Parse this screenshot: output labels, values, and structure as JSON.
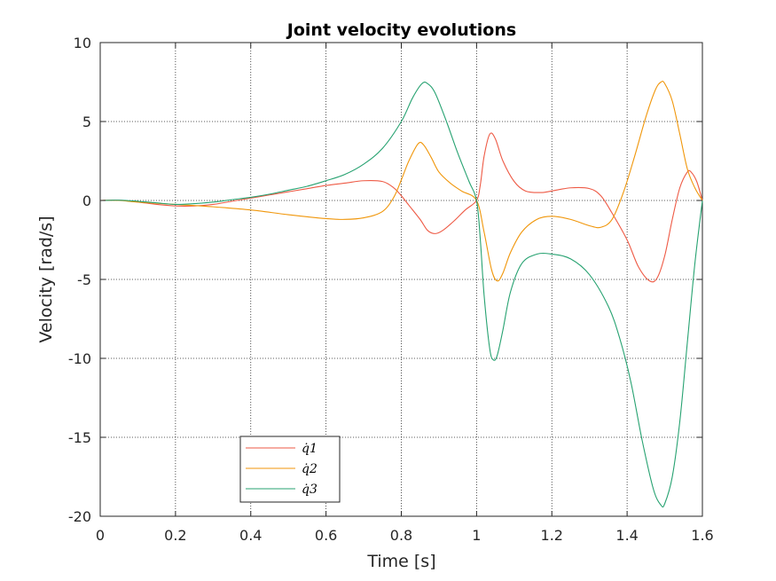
{
  "chart_data": {
    "type": "line",
    "title": "Joint velocity evolutions",
    "xlabel": "Time [s]",
    "ylabel": "Velocity [rad/s]",
    "xlim": [
      0,
      1.6
    ],
    "ylim": [
      -20,
      10
    ],
    "xticks": [
      0,
      0.2,
      0.4,
      0.6,
      0.8,
      1,
      1.2,
      1.4,
      1.6
    ],
    "xtick_labels": [
      "0",
      "0.2",
      "0.4",
      "0.6",
      "0.8",
      "1",
      "1.2",
      "1.4",
      "1.6"
    ],
    "yticks": [
      -20,
      -15,
      -10,
      -5,
      0,
      5,
      10
    ],
    "ytick_labels": [
      "-20",
      "-15",
      "-10",
      "-5",
      "0",
      "5",
      "10"
    ],
    "grid": true,
    "legend_position": "bottom-left",
    "series": [
      {
        "name": "q̇1",
        "color": "#ee5a45",
        "points": [
          [
            0,
            0
          ],
          [
            0.05,
            0.02
          ],
          [
            0.1,
            -0.1
          ],
          [
            0.15,
            -0.25
          ],
          [
            0.2,
            -0.35
          ],
          [
            0.25,
            -0.35
          ],
          [
            0.3,
            -0.25
          ],
          [
            0.35,
            -0.05
          ],
          [
            0.4,
            0.15
          ],
          [
            0.45,
            0.35
          ],
          [
            0.5,
            0.55
          ],
          [
            0.55,
            0.75
          ],
          [
            0.6,
            0.95
          ],
          [
            0.65,
            1.1
          ],
          [
            0.7,
            1.25
          ],
          [
            0.75,
            1.2
          ],
          [
            0.78,
            0.8
          ],
          [
            0.8,
            0.3
          ],
          [
            0.82,
            -0.3
          ],
          [
            0.85,
            -1.2
          ],
          [
            0.87,
            -1.9
          ],
          [
            0.89,
            -2.1
          ],
          [
            0.91,
            -1.9
          ],
          [
            0.94,
            -1.3
          ],
          [
            0.97,
            -0.6
          ],
          [
            1.0,
            0
          ],
          [
            1.01,
            1.0
          ],
          [
            1.02,
            2.8
          ],
          [
            1.035,
            4.2
          ],
          [
            1.05,
            3.9
          ],
          [
            1.07,
            2.5
          ],
          [
            1.1,
            1.2
          ],
          [
            1.13,
            0.6
          ],
          [
            1.17,
            0.5
          ],
          [
            1.2,
            0.6
          ],
          [
            1.25,
            0.8
          ],
          [
            1.3,
            0.75
          ],
          [
            1.33,
            0.3
          ],
          [
            1.36,
            -0.8
          ],
          [
            1.4,
            -2.5
          ],
          [
            1.43,
            -4.2
          ],
          [
            1.46,
            -5.1
          ],
          [
            1.48,
            -4.9
          ],
          [
            1.5,
            -3.5
          ],
          [
            1.52,
            -1.2
          ],
          [
            1.54,
            0.8
          ],
          [
            1.56,
            1.8
          ],
          [
            1.57,
            1.8
          ],
          [
            1.585,
            1.2
          ],
          [
            1.6,
            0
          ]
        ]
      },
      {
        "name": "q̇2",
        "color": "#f0960a",
        "points": [
          [
            0,
            0
          ],
          [
            0.05,
            0.0
          ],
          [
            0.1,
            -0.1
          ],
          [
            0.2,
            -0.25
          ],
          [
            0.3,
            -0.4
          ],
          [
            0.4,
            -0.6
          ],
          [
            0.5,
            -0.9
          ],
          [
            0.6,
            -1.15
          ],
          [
            0.65,
            -1.2
          ],
          [
            0.7,
            -1.1
          ],
          [
            0.75,
            -0.7
          ],
          [
            0.78,
            0.2
          ],
          [
            0.8,
            1.3
          ],
          [
            0.82,
            2.5
          ],
          [
            0.845,
            3.6
          ],
          [
            0.86,
            3.5
          ],
          [
            0.88,
            2.7
          ],
          [
            0.9,
            1.8
          ],
          [
            0.93,
            1.1
          ],
          [
            0.96,
            0.6
          ],
          [
            1.0,
            0
          ],
          [
            1.02,
            -2.0
          ],
          [
            1.04,
            -4.4
          ],
          [
            1.055,
            -5.1
          ],
          [
            1.07,
            -4.6
          ],
          [
            1.09,
            -3.3
          ],
          [
            1.12,
            -2.0
          ],
          [
            1.16,
            -1.2
          ],
          [
            1.2,
            -1.0
          ],
          [
            1.25,
            -1.2
          ],
          [
            1.3,
            -1.6
          ],
          [
            1.33,
            -1.7
          ],
          [
            1.36,
            -1.2
          ],
          [
            1.39,
            0.5
          ],
          [
            1.42,
            2.8
          ],
          [
            1.45,
            5.3
          ],
          [
            1.475,
            7.0
          ],
          [
            1.49,
            7.5
          ],
          [
            1.5,
            7.4
          ],
          [
            1.52,
            6.3
          ],
          [
            1.54,
            4.2
          ],
          [
            1.56,
            2.0
          ],
          [
            1.58,
            0.8
          ],
          [
            1.6,
            0
          ]
        ]
      },
      {
        "name": "q̇3",
        "color": "#27a271",
        "points": [
          [
            0,
            0
          ],
          [
            0.05,
            0.02
          ],
          [
            0.1,
            -0.05
          ],
          [
            0.15,
            -0.15
          ],
          [
            0.2,
            -0.25
          ],
          [
            0.25,
            -0.2
          ],
          [
            0.3,
            -0.1
          ],
          [
            0.35,
            0.05
          ],
          [
            0.4,
            0.2
          ],
          [
            0.45,
            0.4
          ],
          [
            0.5,
            0.65
          ],
          [
            0.55,
            0.9
          ],
          [
            0.6,
            1.25
          ],
          [
            0.65,
            1.65
          ],
          [
            0.7,
            2.3
          ],
          [
            0.75,
            3.3
          ],
          [
            0.8,
            5.0
          ],
          [
            0.83,
            6.5
          ],
          [
            0.855,
            7.4
          ],
          [
            0.87,
            7.4
          ],
          [
            0.89,
            6.8
          ],
          [
            0.92,
            5.0
          ],
          [
            0.95,
            3.0
          ],
          [
            0.98,
            1.2
          ],
          [
            1.0,
            0
          ],
          [
            1.01,
            -2.5
          ],
          [
            1.02,
            -6.0
          ],
          [
            1.035,
            -9.4
          ],
          [
            1.045,
            -10.1
          ],
          [
            1.055,
            -9.8
          ],
          [
            1.07,
            -8.2
          ],
          [
            1.09,
            -5.8
          ],
          [
            1.12,
            -4.0
          ],
          [
            1.16,
            -3.4
          ],
          [
            1.2,
            -3.4
          ],
          [
            1.25,
            -3.7
          ],
          [
            1.3,
            -4.7
          ],
          [
            1.35,
            -6.7
          ],
          [
            1.38,
            -8.7
          ],
          [
            1.41,
            -11.5
          ],
          [
            1.44,
            -15.2
          ],
          [
            1.47,
            -18.3
          ],
          [
            1.49,
            -19.3
          ],
          [
            1.5,
            -19.2
          ],
          [
            1.52,
            -17.5
          ],
          [
            1.54,
            -14.0
          ],
          [
            1.56,
            -9.0
          ],
          [
            1.58,
            -4.0
          ],
          [
            1.6,
            0
          ]
        ]
      }
    ]
  }
}
